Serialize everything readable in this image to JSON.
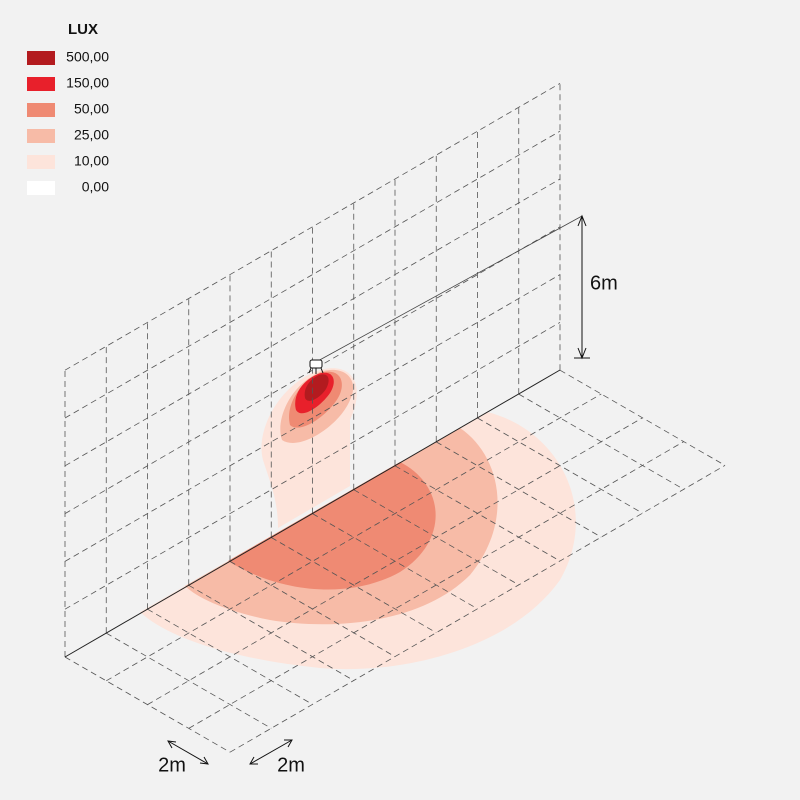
{
  "legend": {
    "title": "LUX",
    "items": [
      {
        "label": "500,00",
        "color": "#b31b1f"
      },
      {
        "label": "150,00",
        "color": "#e8202b"
      },
      {
        "label": "50,00",
        "color": "#ef8a73"
      },
      {
        "label": "25,00",
        "color": "#f7bba7"
      },
      {
        "label": "10,00",
        "color": "#fde4db"
      },
      {
        "label": "0,00",
        "color": "#ffffff"
      }
    ]
  },
  "dimensions": {
    "height": "6m",
    "grid_x": "2m",
    "grid_y": "2m"
  }
}
